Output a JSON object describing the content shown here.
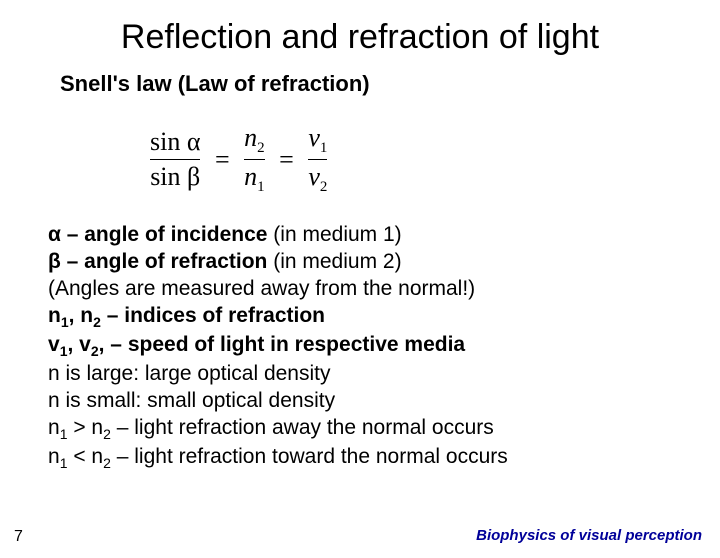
{
  "title": "Reflection and refraction of light",
  "subtitle": "Snell's law (Law of refraction)",
  "equation": {
    "left": {
      "num": "sin α",
      "den": "sin β"
    },
    "mid": {
      "num_sym": "n",
      "num_sub": "2",
      "den_sym": "n",
      "den_sub": "1"
    },
    "right": {
      "num_sym": "v",
      "num_sub": "1",
      "den_sym": "v",
      "den_sub": "2"
    },
    "eq": "="
  },
  "lines": {
    "l1a": "α – angle of incidence",
    "l1b": " (in medium 1)",
    "l2a": "β – angle of refraction",
    "l2b": " (in medium 2)",
    "l3": "(Angles are measured away from the normal!)",
    "l4a": "n",
    "l4sub1": "1",
    "l4b": ", n",
    "l4sub2": "2",
    "l4c": " – indices of refraction",
    "l5a": "v",
    "l5sub1": "1",
    "l5b": ", v",
    "l5sub2": "2",
    "l5c": ", – speed of light in respective media",
    "l6": "n is large: large optical density",
    "l7": "n is small: small optical density",
    "l8a": "n",
    "l8sub1": "1",
    "l8b": " > n",
    "l8sub2": "2",
    "l8c": " – light refraction away the normal occurs",
    "l9a": "n",
    "l9sub1": "1",
    "l9b": " < n",
    "l9sub2": "2",
    "l9c": " – light refraction toward the normal occurs"
  },
  "page_number": "7",
  "footer": "Biophysics of visual perception",
  "colors": {
    "footer": "#000099",
    "text": "#000000",
    "bg": "#ffffff"
  }
}
